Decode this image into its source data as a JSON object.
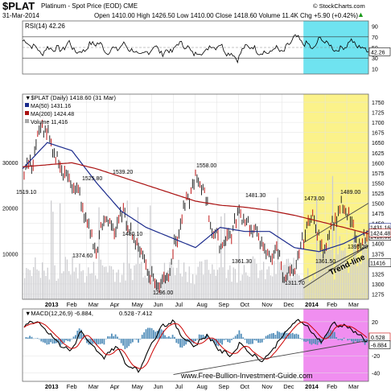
{
  "header": {
    "symbol": "$PLAT",
    "name": "Platinum - Spot Price (EOD) CME",
    "watermark": "© StockCharts.com",
    "date": "31-Mar-2014",
    "quote": "Open 1410.00  High 1426.50  Low 1410.00  Close 1418.60  Volume 11.4K  Chg +5.90 (+0.42%)",
    "quote_arrow": "▲"
  },
  "rsi_panel": {
    "label": "RSI(14) 42.26",
    "last_value_tag": "42.26",
    "ticks": [
      90,
      70,
      50,
      30,
      10
    ],
    "guides": [
      70,
      30
    ]
  },
  "price_panel": {
    "legend": {
      "title": "$PLAT (Daily) 1418.60 (31 Mar)",
      "ma50": "MA(50) 1431.16",
      "ma200": "MA(200) 1424.48",
      "volume": "Volume 11,416"
    },
    "price_ticks": [
      1750,
      1725,
      1700,
      1675,
      1650,
      1625,
      1600,
      1575,
      1550,
      1525,
      1500,
      1475,
      1450,
      1425,
      1400,
      1375,
      1350,
      1325,
      1300,
      1275
    ],
    "volume_ticks": [
      "30000",
      "20000",
      "10000"
    ],
    "annotations": [
      "1519.10",
      "1525.80",
      "1539.20",
      "1374.60",
      "1430.10",
      "1296.00",
      "1558.00",
      "1481.30",
      "1361.30",
      "1311.70",
      "1473.00",
      "1489.00",
      "1361.50",
      "1395.20"
    ],
    "trend_label": "Trend-line",
    "last_tags": [
      "1431.16",
      "1418.60",
      "1424.48",
      "11416"
    ]
  },
  "macd_panel": {
    "legend_prefix": "MACD(12,26,9) -6.884,",
    "legend_signal": "0.528",
    "legend_hist": ", -7.412",
    "ticks": [
      "20",
      "0",
      "-20",
      "-40"
    ],
    "last_tags": [
      "0.528",
      "-6.884"
    ]
  },
  "x_axis": {
    "months": [
      "2013",
      "Feb",
      "Mar",
      "Apr",
      "May",
      "Jun",
      "Jul",
      "Aug",
      "Sep",
      "Oct",
      "Nov",
      "Dec",
      "2014",
      "Feb",
      "Mar"
    ]
  },
  "footer_watermark": "www.Free-Bullion-Investment-Guide.com",
  "colors": {
    "price": "#000000",
    "ma50": "#1a2a8c",
    "ma200": "#aa1111",
    "volume": "#ccccd0",
    "rsi_highlight": "#6fe3f0",
    "price_highlight": "#fbf28a",
    "macd_highlight": "#f08ef0",
    "macd_hist": "#5590bb",
    "trend_line": "#444444"
  },
  "chart_data": {
    "type": "line",
    "title": "$PLAT Platinum - Spot Price (EOD) CME",
    "x": [
      "2013-01",
      "2013-02",
      "2013-03",
      "2013-04",
      "2013-05",
      "2013-06",
      "2013-07",
      "2013-08",
      "2013-09",
      "2013-10",
      "2013-11",
      "2013-12",
      "2014-01",
      "2014-02",
      "2014-03"
    ],
    "series": [
      {
        "name": "$PLAT (Daily)",
        "values": [
          1570,
          1700,
          1585,
          1460,
          1460,
          1410,
          1380,
          1500,
          1410,
          1410,
          1440,
          1360,
          1420,
          1440,
          1440
        ]
      },
      {
        "name": "MA(50) 1431.16",
        "values": [
          1585,
          1650,
          1630,
          1550,
          1480,
          1440,
          1415,
          1390,
          1440,
          1430,
          1430,
          1390,
          1380,
          1400,
          1431
        ]
      },
      {
        "name": "MA(200) 1424.48",
        "values": [
          1590,
          1595,
          1600,
          1585,
          1565,
          1545,
          1525,
          1505,
          1495,
          1490,
          1482,
          1470,
          1455,
          1440,
          1424
        ]
      }
    ],
    "ylim": [
      1262,
      1770
    ],
    "y_ticks": [
      1750,
      1725,
      1700,
      1675,
      1650,
      1625,
      1600,
      1575,
      1550,
      1525,
      1500,
      1475,
      1450,
      1425,
      1400,
      1375,
      1350,
      1325,
      1300,
      1275
    ],
    "grid": true,
    "legend": "top-left"
  }
}
